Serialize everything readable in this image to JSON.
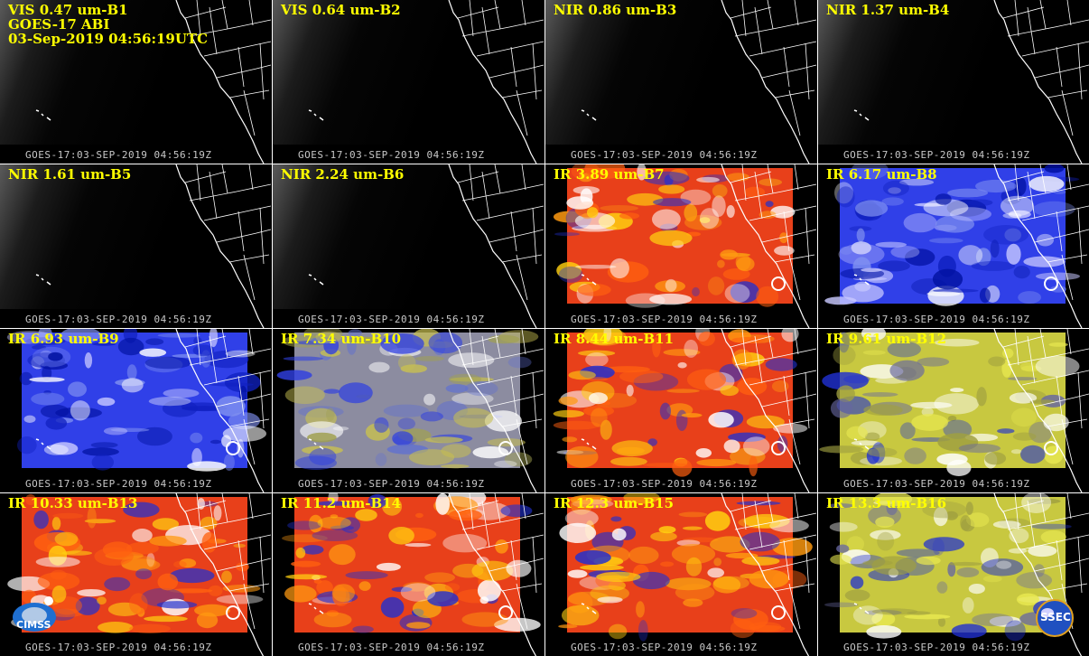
{
  "header": {
    "satellite": "GOES-17 ABI",
    "datetime": "03-Sep-2019 04:56:19UTC"
  },
  "timestamp": "GOES-17:03-SEP-2019 04:56:19Z",
  "panels": [
    {
      "label": "VIS 0.47 um-B1",
      "kind": "vis"
    },
    {
      "label": "VIS 0.64 um-B2",
      "kind": "vis"
    },
    {
      "label": "NIR 0.86 um-B3",
      "kind": "vis"
    },
    {
      "label": "NIR 1.37 um-B4",
      "kind": "vis"
    },
    {
      "label": "NIR 1.61 um-B5",
      "kind": "vis"
    },
    {
      "label": "NIR 2.24 um-B6",
      "kind": "vis"
    },
    {
      "label": "IR 3.89 um-B7",
      "kind": "ir"
    },
    {
      "label": "IR 6.17 um-B8",
      "kind": "wv"
    },
    {
      "label": "IR 6.93 um-B9",
      "kind": "wv"
    },
    {
      "label": "IR 7.34 um-B10",
      "kind": "wvmix"
    },
    {
      "label": "IR 8.44 um-B11",
      "kind": "ir"
    },
    {
      "label": "IR 9.61 um-B12",
      "kind": "yellow"
    },
    {
      "label": "IR 10.33 um-B13",
      "kind": "ir"
    },
    {
      "label": "IR 11.2 um-B14",
      "kind": "ir"
    },
    {
      "label": "IR 12.3 um-B15",
      "kind": "ir"
    },
    {
      "label": "IR 13.3 um-B16",
      "kind": "yellow"
    }
  ],
  "logos": {
    "left": "CIMSS",
    "right": "SSEC"
  },
  "colors": {
    "label": "#ffff00",
    "ir_red": "#e83010",
    "ir_orange": "#ff8c00",
    "wv_blue": "#2030e0",
    "yellow": "#d8d840"
  }
}
